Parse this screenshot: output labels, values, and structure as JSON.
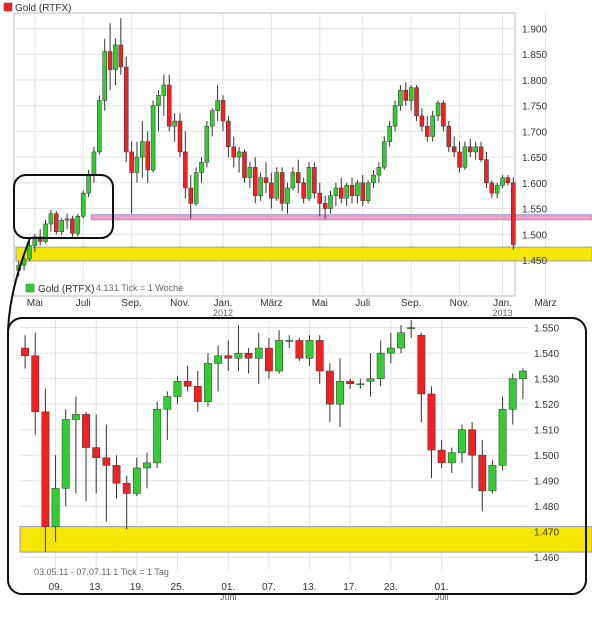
{
  "chart_data": [
    {
      "type": "candlestick",
      "title": "Gold (RTFX)",
      "subtitle": "1 Tick = 1 Woche",
      "ylim": [
        1380,
        1930
      ],
      "yticks": [
        1450,
        1500,
        1550,
        1600,
        1650,
        1700,
        1750,
        1800,
        1850,
        1900
      ],
      "ytick_labels": [
        "1.450",
        "1.500",
        "1.550",
        "1.600",
        "1.650",
        "1.700",
        "1.750",
        "1.800",
        "1.850",
        "1.900"
      ],
      "xticks": [
        {
          "i": 3,
          "label": "Mai"
        },
        {
          "i": 12,
          "label": "Juli"
        },
        {
          "i": 21,
          "label": "Sep."
        },
        {
          "i": 30,
          "label": "Nov."
        },
        {
          "i": 38,
          "label": "Jan.",
          "sub": "2012"
        },
        {
          "i": 47,
          "label": "März"
        },
        {
          "i": 56,
          "label": "Mai"
        },
        {
          "i": 64,
          "label": "Juli"
        },
        {
          "i": 73,
          "label": "Sep."
        },
        {
          "i": 82,
          "label": "Nov."
        },
        {
          "i": 90,
          "label": "Jan.",
          "sub": "2013"
        },
        {
          "i": 98,
          "label": "März"
        }
      ],
      "candles": [
        {
          "o": 1430,
          "h": 1448,
          "l": 1418,
          "c": 1440
        },
        {
          "o": 1440,
          "h": 1455,
          "l": 1430,
          "c": 1452
        },
        {
          "o": 1452,
          "h": 1485,
          "l": 1448,
          "c": 1478
        },
        {
          "o": 1478,
          "h": 1500,
          "l": 1465,
          "c": 1495
        },
        {
          "o": 1495,
          "h": 1510,
          "l": 1478,
          "c": 1486
        },
        {
          "o": 1486,
          "h": 1528,
          "l": 1482,
          "c": 1520
        },
        {
          "o": 1520,
          "h": 1548,
          "l": 1505,
          "c": 1540
        },
        {
          "o": 1540,
          "h": 1545,
          "l": 1500,
          "c": 1505
        },
        {
          "o": 1505,
          "h": 1532,
          "l": 1498,
          "c": 1527
        },
        {
          "o": 1527,
          "h": 1540,
          "l": 1510,
          "c": 1530
        },
        {
          "o": 1530,
          "h": 1536,
          "l": 1495,
          "c": 1502
        },
        {
          "o": 1502,
          "h": 1540,
          "l": 1496,
          "c": 1535
        },
        {
          "o": 1535,
          "h": 1585,
          "l": 1530,
          "c": 1580
        },
        {
          "o": 1580,
          "h": 1625,
          "l": 1572,
          "c": 1615
        },
        {
          "o": 1615,
          "h": 1670,
          "l": 1600,
          "c": 1660
        },
        {
          "o": 1660,
          "h": 1770,
          "l": 1655,
          "c": 1760
        },
        {
          "o": 1760,
          "h": 1880,
          "l": 1740,
          "c": 1855
        },
        {
          "o": 1855,
          "h": 1910,
          "l": 1780,
          "c": 1820
        },
        {
          "o": 1820,
          "h": 1880,
          "l": 1790,
          "c": 1868
        },
        {
          "o": 1868,
          "h": 1920,
          "l": 1810,
          "c": 1825
        },
        {
          "o": 1825,
          "h": 1845,
          "l": 1640,
          "c": 1660
        },
        {
          "o": 1660,
          "h": 1680,
          "l": 1540,
          "c": 1620
        },
        {
          "o": 1620,
          "h": 1680,
          "l": 1600,
          "c": 1650
        },
        {
          "o": 1650,
          "h": 1720,
          "l": 1610,
          "c": 1680
        },
        {
          "o": 1680,
          "h": 1700,
          "l": 1600,
          "c": 1625
        },
        {
          "o": 1625,
          "h": 1760,
          "l": 1620,
          "c": 1750
        },
        {
          "o": 1750,
          "h": 1780,
          "l": 1700,
          "c": 1770
        },
        {
          "o": 1770,
          "h": 1810,
          "l": 1730,
          "c": 1790
        },
        {
          "o": 1790,
          "h": 1810,
          "l": 1700,
          "c": 1710
        },
        {
          "o": 1710,
          "h": 1735,
          "l": 1680,
          "c": 1720
        },
        {
          "o": 1720,
          "h": 1735,
          "l": 1650,
          "c": 1660
        },
        {
          "o": 1660,
          "h": 1700,
          "l": 1570,
          "c": 1590
        },
        {
          "o": 1590,
          "h": 1615,
          "l": 1530,
          "c": 1560
        },
        {
          "o": 1560,
          "h": 1630,
          "l": 1555,
          "c": 1620
        },
        {
          "o": 1620,
          "h": 1650,
          "l": 1600,
          "c": 1640
        },
        {
          "o": 1640,
          "h": 1720,
          "l": 1630,
          "c": 1710
        },
        {
          "o": 1710,
          "h": 1745,
          "l": 1690,
          "c": 1740
        },
        {
          "o": 1740,
          "h": 1790,
          "l": 1720,
          "c": 1760
        },
        {
          "o": 1760,
          "h": 1770,
          "l": 1700,
          "c": 1720
        },
        {
          "o": 1720,
          "h": 1730,
          "l": 1650,
          "c": 1670
        },
        {
          "o": 1670,
          "h": 1690,
          "l": 1630,
          "c": 1650
        },
        {
          "o": 1650,
          "h": 1670,
          "l": 1620,
          "c": 1660
        },
        {
          "o": 1660,
          "h": 1665,
          "l": 1600,
          "c": 1610
        },
        {
          "o": 1610,
          "h": 1640,
          "l": 1590,
          "c": 1630
        },
        {
          "o": 1630,
          "h": 1650,
          "l": 1560,
          "c": 1575
        },
        {
          "o": 1575,
          "h": 1620,
          "l": 1565,
          "c": 1610
        },
        {
          "o": 1610,
          "h": 1640,
          "l": 1580,
          "c": 1600
        },
        {
          "o": 1600,
          "h": 1620,
          "l": 1550,
          "c": 1570
        },
        {
          "o": 1570,
          "h": 1630,
          "l": 1565,
          "c": 1620
        },
        {
          "o": 1620,
          "h": 1630,
          "l": 1545,
          "c": 1560
        },
        {
          "o": 1560,
          "h": 1600,
          "l": 1540,
          "c": 1590
        },
        {
          "o": 1590,
          "h": 1630,
          "l": 1585,
          "c": 1620
        },
        {
          "o": 1620,
          "h": 1645,
          "l": 1580,
          "c": 1600
        },
        {
          "o": 1600,
          "h": 1610,
          "l": 1560,
          "c": 1570
        },
        {
          "o": 1570,
          "h": 1640,
          "l": 1565,
          "c": 1630
        },
        {
          "o": 1630,
          "h": 1640,
          "l": 1570,
          "c": 1580
        },
        {
          "o": 1580,
          "h": 1600,
          "l": 1535,
          "c": 1560
        },
        {
          "o": 1560,
          "h": 1575,
          "l": 1530,
          "c": 1550
        },
        {
          "o": 1550,
          "h": 1585,
          "l": 1540,
          "c": 1575
        },
        {
          "o": 1575,
          "h": 1600,
          "l": 1555,
          "c": 1590
        },
        {
          "o": 1590,
          "h": 1610,
          "l": 1560,
          "c": 1570
        },
        {
          "o": 1570,
          "h": 1600,
          "l": 1555,
          "c": 1595
        },
        {
          "o": 1595,
          "h": 1610,
          "l": 1560,
          "c": 1575
        },
        {
          "o": 1575,
          "h": 1605,
          "l": 1560,
          "c": 1600
        },
        {
          "o": 1600,
          "h": 1615,
          "l": 1555,
          "c": 1565
        },
        {
          "o": 1565,
          "h": 1605,
          "l": 1560,
          "c": 1600
        },
        {
          "o": 1600,
          "h": 1625,
          "l": 1590,
          "c": 1615
        },
        {
          "o": 1615,
          "h": 1640,
          "l": 1600,
          "c": 1630
        },
        {
          "o": 1630,
          "h": 1690,
          "l": 1625,
          "c": 1680
        },
        {
          "o": 1680,
          "h": 1720,
          "l": 1670,
          "c": 1710
        },
        {
          "o": 1710,
          "h": 1760,
          "l": 1700,
          "c": 1750
        },
        {
          "o": 1750,
          "h": 1790,
          "l": 1740,
          "c": 1780
        },
        {
          "o": 1780,
          "h": 1795,
          "l": 1750,
          "c": 1760
        },
        {
          "o": 1760,
          "h": 1790,
          "l": 1740,
          "c": 1785
        },
        {
          "o": 1785,
          "h": 1790,
          "l": 1720,
          "c": 1730
        },
        {
          "o": 1730,
          "h": 1745,
          "l": 1700,
          "c": 1710
        },
        {
          "o": 1710,
          "h": 1730,
          "l": 1680,
          "c": 1690
        },
        {
          "o": 1690,
          "h": 1740,
          "l": 1680,
          "c": 1730
        },
        {
          "o": 1730,
          "h": 1760,
          "l": 1720,
          "c": 1755
        },
        {
          "o": 1755,
          "h": 1760,
          "l": 1700,
          "c": 1710
        },
        {
          "o": 1710,
          "h": 1720,
          "l": 1660,
          "c": 1670
        },
        {
          "o": 1670,
          "h": 1690,
          "l": 1650,
          "c": 1660
        },
        {
          "o": 1660,
          "h": 1680,
          "l": 1620,
          "c": 1630
        },
        {
          "o": 1630,
          "h": 1680,
          "l": 1625,
          "c": 1670
        },
        {
          "o": 1670,
          "h": 1685,
          "l": 1650,
          "c": 1660
        },
        {
          "o": 1660,
          "h": 1680,
          "l": 1645,
          "c": 1670
        },
        {
          "o": 1670,
          "h": 1680,
          "l": 1640,
          "c": 1645
        },
        {
          "o": 1645,
          "h": 1660,
          "l": 1590,
          "c": 1600
        },
        {
          "o": 1600,
          "h": 1605,
          "l": 1570,
          "c": 1580
        },
        {
          "o": 1580,
          "h": 1600,
          "l": 1570,
          "c": 1595
        },
        {
          "o": 1595,
          "h": 1615,
          "l": 1590,
          "c": 1610
        },
        {
          "o": 1610,
          "h": 1615,
          "l": 1595,
          "c": 1600
        },
        {
          "o": 1600,
          "h": 1610,
          "l": 1470,
          "c": 1480
        }
      ],
      "horizontal_bands": [
        {
          "from": 1528,
          "to": 1538,
          "start_i": 14,
          "color": "#f0a0c8"
        },
        {
          "from": 1448,
          "to": 1475,
          "start_i": 0,
          "color": "#f5e600"
        }
      ],
      "colors": {
        "up": "#33cc33",
        "down": "#ee2222"
      }
    },
    {
      "type": "candlestick",
      "title": "Gold (RTFX)",
      "subtitle": "03.05.11 - 07.07.11   1 Tick = 1 Tag",
      "ylim": [
        1455,
        1553
      ],
      "yticks": [
        1460,
        1470,
        1480,
        1490,
        1500,
        1510,
        1520,
        1530,
        1540,
        1550
      ],
      "ytick_labels": [
        "1.460",
        "1.470",
        "1.480",
        "1.490",
        "1.500",
        "1.510",
        "1.520",
        "1.530",
        "1.540",
        "1.550"
      ],
      "xticks": [
        {
          "i": 3,
          "label": "09."
        },
        {
          "i": 7,
          "label": "13."
        },
        {
          "i": 11,
          "label": "19."
        },
        {
          "i": 15,
          "label": "25."
        },
        {
          "i": 20,
          "label": "01.",
          "sub": "Juni"
        },
        {
          "i": 24,
          "label": "07."
        },
        {
          "i": 28,
          "label": "13."
        },
        {
          "i": 32,
          "label": "17."
        },
        {
          "i": 36,
          "label": "23."
        },
        {
          "i": 41,
          "label": "01.",
          "sub": "Juli"
        }
      ],
      "candles": [
        {
          "o": 1542,
          "h": 1547,
          "l": 1534,
          "c": 1539
        },
        {
          "o": 1539,
          "h": 1548,
          "l": 1508,
          "c": 1517
        },
        {
          "o": 1517,
          "h": 1526,
          "l": 1462,
          "c": 1472
        },
        {
          "o": 1472,
          "h": 1500,
          "l": 1466,
          "c": 1487
        },
        {
          "o": 1487,
          "h": 1518,
          "l": 1480,
          "c": 1514
        },
        {
          "o": 1514,
          "h": 1523,
          "l": 1485,
          "c": 1516
        },
        {
          "o": 1516,
          "h": 1517,
          "l": 1482,
          "c": 1503
        },
        {
          "o": 1503,
          "h": 1516,
          "l": 1485,
          "c": 1499
        },
        {
          "o": 1499,
          "h": 1512,
          "l": 1474,
          "c": 1496
        },
        {
          "o": 1496,
          "h": 1500,
          "l": 1483,
          "c": 1489
        },
        {
          "o": 1489,
          "h": 1492,
          "l": 1471,
          "c": 1485
        },
        {
          "o": 1485,
          "h": 1499,
          "l": 1484,
          "c": 1495
        },
        {
          "o": 1495,
          "h": 1501,
          "l": 1487,
          "c": 1497
        },
        {
          "o": 1497,
          "h": 1521,
          "l": 1495,
          "c": 1518
        },
        {
          "o": 1518,
          "h": 1525,
          "l": 1506,
          "c": 1523
        },
        {
          "o": 1523,
          "h": 1531,
          "l": 1520,
          "c": 1529
        },
        {
          "o": 1529,
          "h": 1535,
          "l": 1525,
          "c": 1527
        },
        {
          "o": 1527,
          "h": 1533,
          "l": 1517,
          "c": 1521
        },
        {
          "o": 1521,
          "h": 1540,
          "l": 1519,
          "c": 1536
        },
        {
          "o": 1536,
          "h": 1543,
          "l": 1525,
          "c": 1539
        },
        {
          "o": 1539,
          "h": 1545,
          "l": 1533,
          "c": 1538
        },
        {
          "o": 1538,
          "h": 1551,
          "l": 1533,
          "c": 1540
        },
        {
          "o": 1540,
          "h": 1542,
          "l": 1532,
          "c": 1538
        },
        {
          "o": 1538,
          "h": 1548,
          "l": 1528,
          "c": 1542
        },
        {
          "o": 1542,
          "h": 1546,
          "l": 1530,
          "c": 1533
        },
        {
          "o": 1533,
          "h": 1549,
          "l": 1532,
          "c": 1545
        },
        {
          "o": 1545,
          "h": 1547,
          "l": 1542,
          "c": 1545
        },
        {
          "o": 1545,
          "h": 1546,
          "l": 1537,
          "c": 1538
        },
        {
          "o": 1538,
          "h": 1547,
          "l": 1535,
          "c": 1545
        },
        {
          "o": 1545,
          "h": 1547,
          "l": 1528,
          "c": 1533
        },
        {
          "o": 1533,
          "h": 1536,
          "l": 1513,
          "c": 1520
        },
        {
          "o": 1520,
          "h": 1538,
          "l": 1511,
          "c": 1529
        },
        {
          "o": 1529,
          "h": 1530,
          "l": 1526,
          "c": 1528
        },
        {
          "o": 1528,
          "h": 1530,
          "l": 1526,
          "c": 1528
        },
        {
          "o": 1529,
          "h": 1540,
          "l": 1523,
          "c": 1530
        },
        {
          "o": 1530,
          "h": 1545,
          "l": 1527,
          "c": 1540
        },
        {
          "o": 1540,
          "h": 1548,
          "l": 1536,
          "c": 1542
        },
        {
          "o": 1542,
          "h": 1551,
          "l": 1540,
          "c": 1548
        },
        {
          "o": 1550,
          "h": 1553,
          "l": 1546,
          "c": 1550
        },
        {
          "o": 1547,
          "h": 1548,
          "l": 1513,
          "c": 1524
        },
        {
          "o": 1524,
          "h": 1527,
          "l": 1491,
          "c": 1502
        },
        {
          "o": 1502,
          "h": 1506,
          "l": 1495,
          "c": 1497
        },
        {
          "o": 1497,
          "h": 1503,
          "l": 1493,
          "c": 1501
        },
        {
          "o": 1501,
          "h": 1512,
          "l": 1497,
          "c": 1510
        },
        {
          "o": 1510,
          "h": 1513,
          "l": 1487,
          "c": 1500
        },
        {
          "o": 1500,
          "h": 1506,
          "l": 1478,
          "c": 1486
        },
        {
          "o": 1486,
          "h": 1498,
          "l": 1485,
          "c": 1496
        },
        {
          "o": 1496,
          "h": 1523,
          "l": 1494,
          "c": 1518
        },
        {
          "o": 1518,
          "h": 1532,
          "l": 1512,
          "c": 1530
        },
        {
          "o": 1530,
          "h": 1534,
          "l": 1522,
          "c": 1533
        }
      ],
      "horizontal_bands": [
        {
          "from": 1462,
          "to": 1472,
          "start_i": 0,
          "color": "#f5e600"
        }
      ],
      "colors": {
        "up": "#33cc33",
        "down": "#ee2222"
      }
    }
  ],
  "overlay": {
    "top_legend_title": "Gold (RTFX)",
    "top_date_fragment": "4.13",
    "bottom_legend_title": "Gold (RTFX)"
  }
}
